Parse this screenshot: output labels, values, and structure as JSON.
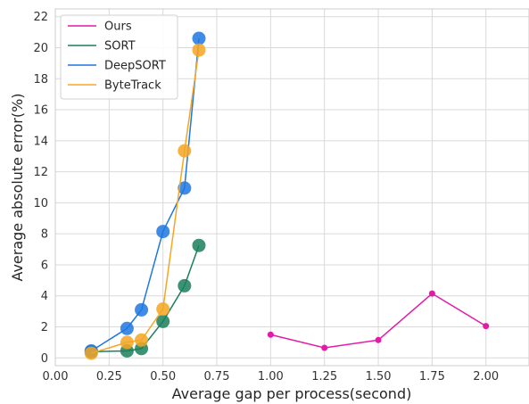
{
  "chart_data": {
    "type": "line",
    "title": "",
    "xlabel": "Average gap per process(second)",
    "ylabel": "Average absolute error(%)",
    "xlim": [
      0.0,
      2.2
    ],
    "ylim": [
      -0.5,
      22.5
    ],
    "x_ticks": [
      "0.00",
      "0.25",
      "0.50",
      "0.75",
      "1.00",
      "1.25",
      "1.50",
      "1.75",
      "2.00"
    ],
    "y_ticks": [
      "0",
      "2",
      "4",
      "6",
      "8",
      "10",
      "12",
      "14",
      "16",
      "18",
      "20",
      "22"
    ],
    "grid": true,
    "legend_position": "top-left",
    "series": [
      {
        "name": "Ours",
        "color": "#e41aa8",
        "marker": "small",
        "x": [
          1.0,
          1.25,
          1.5,
          1.75,
          2.0
        ],
        "y": [
          1.5,
          0.65,
          1.15,
          4.15,
          2.05
        ]
      },
      {
        "name": "SORT",
        "color": "#1b7f5a",
        "marker": "large",
        "x": [
          0.167,
          0.333,
          0.4,
          0.5,
          0.6,
          0.667
        ],
        "y": [
          0.4,
          0.45,
          0.6,
          2.35,
          4.65,
          7.25
        ]
      },
      {
        "name": "DeepSORT",
        "color": "#1f77e0",
        "marker": "large",
        "x": [
          0.167,
          0.333,
          0.4,
          0.5,
          0.6,
          0.667
        ],
        "y": [
          0.45,
          1.9,
          3.1,
          8.15,
          10.95,
          20.6
        ]
      },
      {
        "name": "ByteTrack",
        "color": "#f5a623",
        "marker": "large",
        "x": [
          0.167,
          0.333,
          0.4,
          0.5,
          0.6,
          0.667
        ],
        "y": [
          0.3,
          1.0,
          1.15,
          3.15,
          13.35,
          19.85
        ]
      }
    ]
  }
}
